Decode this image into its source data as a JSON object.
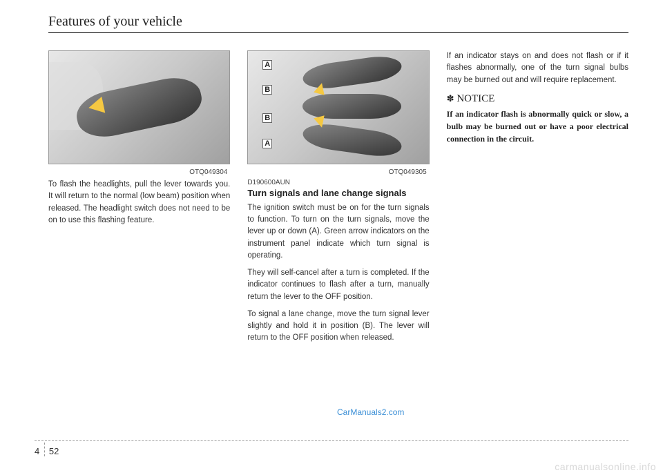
{
  "header": {
    "title": "Features of your vehicle"
  },
  "column1": {
    "figure_code": "OTQ049304",
    "paragraph1": "To flash the headlights, pull the lever towards you. It will return to the normal (low beam) position when released. The headlight switch does not need to be on to use this flashing feature."
  },
  "column2": {
    "figure_code": "OTQ049305",
    "figure_labels": {
      "a": "A",
      "b": "B"
    },
    "section_code": "D190600AUN",
    "subheading": "Turn signals and lane change signals",
    "paragraph1": "The ignition switch must be on for the turn signals to function. To turn on the turn signals, move the lever up or down (A). Green arrow indicators on the instrument panel indicate which turn signal is operating.",
    "paragraph2": "They will self-cancel after a turn is completed. If the indicator continues to flash after a turn, manually return the lever to the OFF position.",
    "paragraph3": "To signal a lane change, move the turn signal lever slightly and hold it in position (B). The lever will return to the OFF position when released."
  },
  "column3": {
    "paragraph1": "If an indicator stays on and does not flash or if it flashes abnormally, one of the turn signal bulbs may be burned out and will require replacement.",
    "notice_symbol": "✽",
    "notice_heading": "NOTICE",
    "notice_text": "If an indicator flash is abnormally quick or slow, a bulb may be burned out or have a poor electrical connection in the circuit."
  },
  "watermarks": {
    "link": "CarManuals2.com",
    "bottom": "carmanualsonline.info"
  },
  "footer": {
    "section_num": "4",
    "page_num": "52"
  }
}
